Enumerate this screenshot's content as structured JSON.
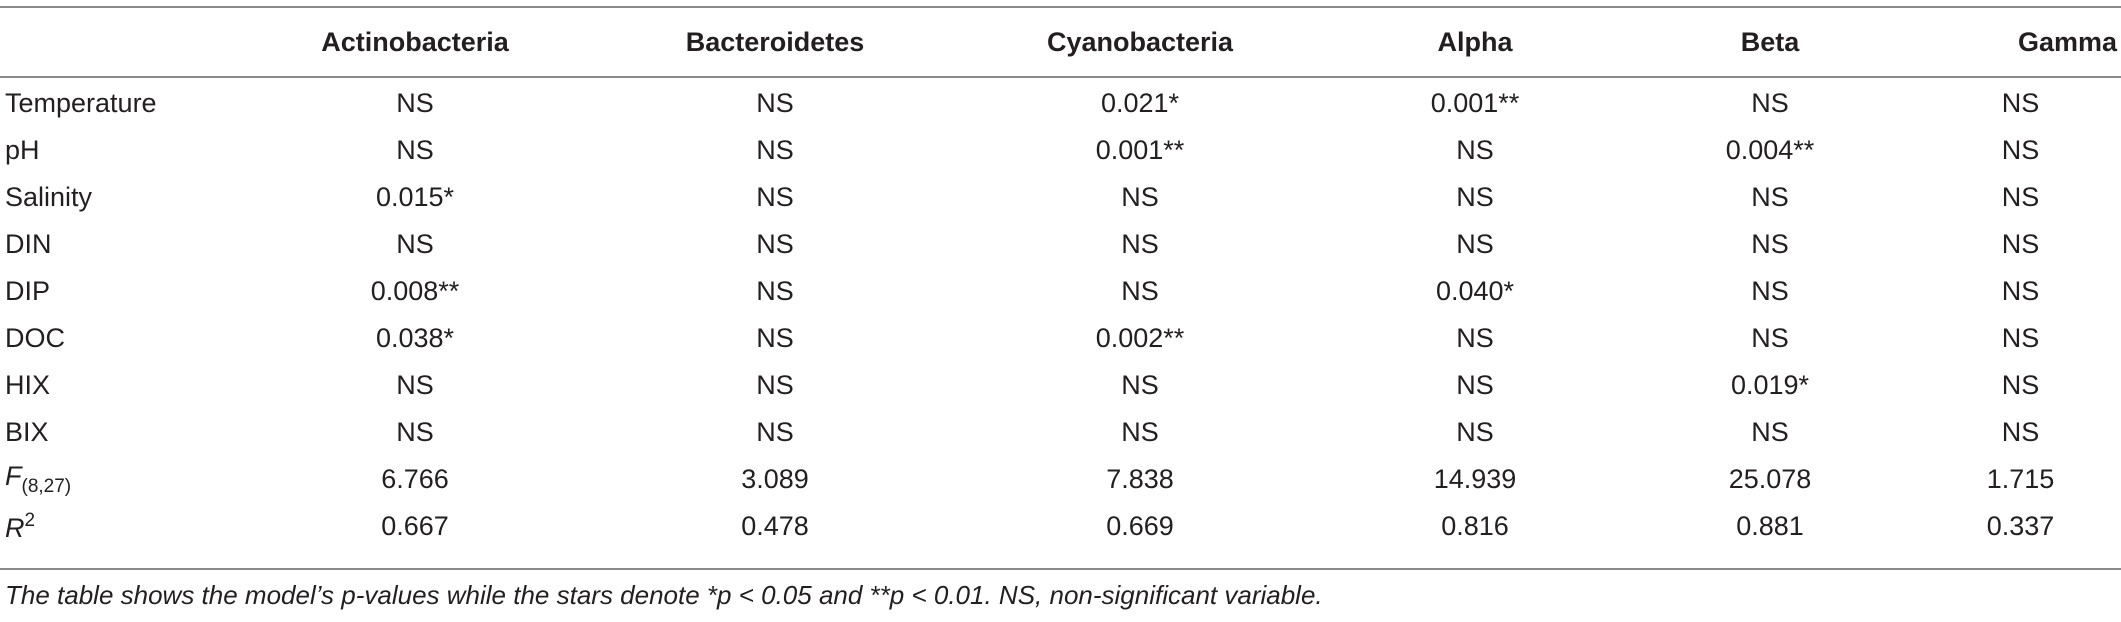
{
  "table": {
    "columns": [
      "",
      "Actinobacteria",
      "Bacteroidetes",
      "Cyanobacteria",
      "Alpha",
      "Beta",
      "Gamma"
    ],
    "rows": [
      {
        "label": "Temperature",
        "cells": [
          "NS",
          "NS",
          "0.021*",
          "0.001**",
          "NS",
          "NS"
        ]
      },
      {
        "label": "pH",
        "cells": [
          "NS",
          "NS",
          "0.001**",
          "NS",
          "0.004**",
          "NS"
        ]
      },
      {
        "label": "Salinity",
        "cells": [
          "0.015*",
          "NS",
          "NS",
          "NS",
          "NS",
          "NS"
        ]
      },
      {
        "label": "DIN",
        "cells": [
          "NS",
          "NS",
          "NS",
          "NS",
          "NS",
          "NS"
        ]
      },
      {
        "label": "DIP",
        "cells": [
          "0.008**",
          "NS",
          "NS",
          "0.040*",
          "NS",
          "NS"
        ]
      },
      {
        "label": "DOC",
        "cells": [
          "0.038*",
          "NS",
          "0.002**",
          "NS",
          "NS",
          "NS"
        ]
      },
      {
        "label": "HIX",
        "cells": [
          "NS",
          "NS",
          "NS",
          "NS",
          "0.019*",
          "NS"
        ]
      },
      {
        "label": "BIX",
        "cells": [
          "NS",
          "NS",
          "NS",
          "NS",
          "NS",
          "NS"
        ]
      },
      {
        "label_main": "F",
        "label_sub": "(8,27)",
        "cells": [
          "6.766",
          "3.089",
          "7.838",
          "14.939",
          "25.078",
          "1.715"
        ]
      },
      {
        "label_main": "R",
        "label_sup": "2",
        "cells": [
          "0.667",
          "0.478",
          "0.669",
          "0.816",
          "0.881",
          "0.337"
        ]
      }
    ]
  },
  "caption": "The table shows the model’s p-values while the stars denote *p < 0.05 and **p < 0.01. NS, non-significant variable."
}
